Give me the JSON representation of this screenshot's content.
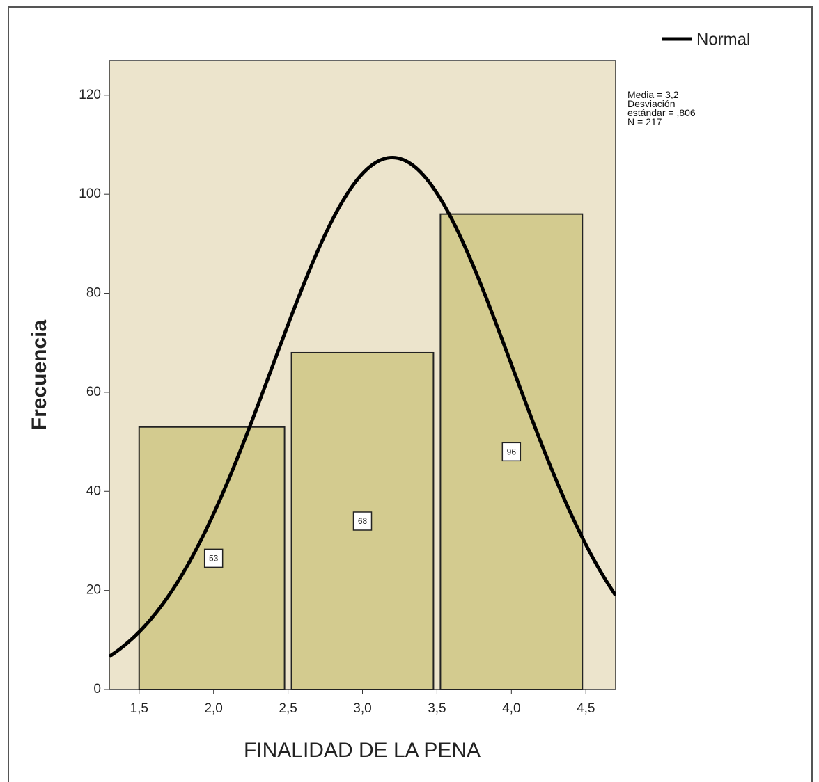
{
  "chart_data": {
    "type": "histogram",
    "xlabel": "FINALIDAD DE LA PENA",
    "ylabel": "Frecuencia",
    "bins": [
      1.5,
      2.5,
      3.5,
      4.5
    ],
    "values": [
      53,
      68,
      96
    ],
    "value_labels": [
      "53",
      "68",
      "96"
    ],
    "color": "#d3cb8f",
    "background": "#ece4cc",
    "xlim": [
      1.3,
      4.7
    ],
    "xticks": [
      {
        "value": 1.5,
        "label": "1,5"
      },
      {
        "value": 2.0,
        "label": "2,0"
      },
      {
        "value": 2.5,
        "label": "2,5"
      },
      {
        "value": 3.0,
        "label": "3,0"
      },
      {
        "value": 3.5,
        "label": "3,5"
      },
      {
        "value": 4.0,
        "label": "4,0"
      },
      {
        "value": 4.5,
        "label": "4,5"
      }
    ],
    "ylim": [
      0,
      127
    ],
    "yticks": [
      0,
      20,
      40,
      60,
      80,
      100,
      120
    ],
    "normal": {
      "name": "Normal",
      "color": "#000000"
    },
    "stats": [
      {
        "value": 3.2,
        "label": "Media = 3,2"
      },
      {
        "value": 0.806,
        "label": "Desviación estándar = ,806"
      },
      {
        "value": 217,
        "label": "N = 217"
      }
    ]
  }
}
